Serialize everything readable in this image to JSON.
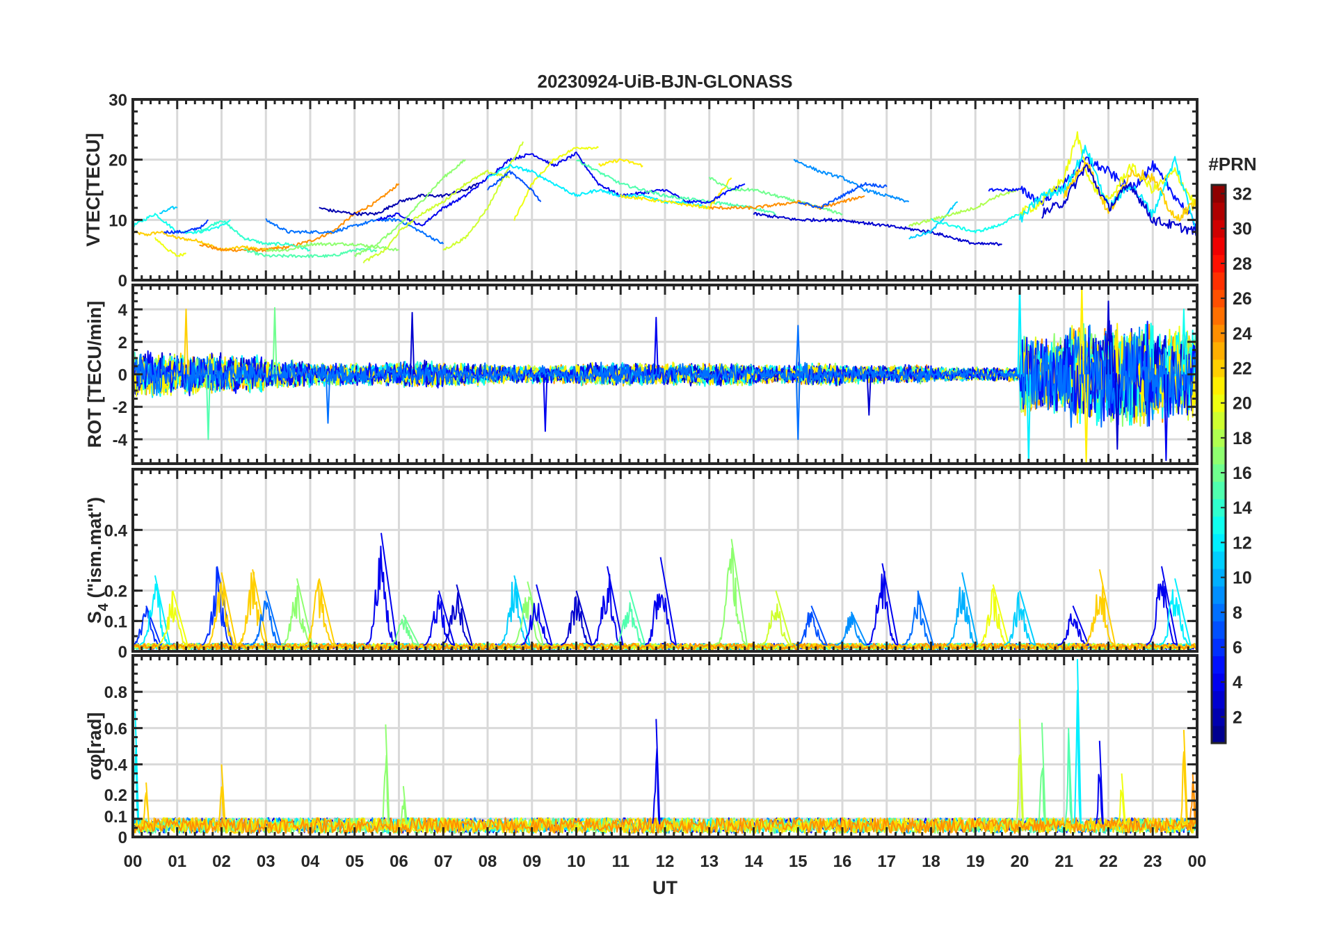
{
  "chart_data": {
    "type": "line",
    "title": "20230924-UiB-BJN-GLONASS",
    "xlabel": "UT",
    "xlim": [
      0,
      24
    ],
    "x_tick_labels": [
      "00",
      "01",
      "02",
      "03",
      "04",
      "05",
      "06",
      "07",
      "08",
      "09",
      "10",
      "11",
      "12",
      "13",
      "14",
      "15",
      "16",
      "17",
      "18",
      "19",
      "20",
      "21",
      "22",
      "23",
      "00"
    ],
    "grid": true,
    "colorbar": {
      "label": "#PRN",
      "range": [
        1,
        32
      ],
      "ticks": [
        2,
        4,
        6,
        8,
        10,
        12,
        14,
        16,
        18,
        20,
        22,
        24,
        26,
        28,
        30,
        32
      ],
      "colormap": "jet"
    },
    "panels": [
      {
        "id": "vtec",
        "ylabel": "VTEC[TECU]",
        "ylim": [
          0,
          30
        ],
        "yticks": [
          0,
          10,
          20,
          30
        ],
        "series": [
          {
            "prn": 22,
            "x": [
              0,
              0.3,
              0.6,
              1,
              1.5,
              2,
              2.5,
              3,
              3.3
            ],
            "y": [
              8,
              7.5,
              8,
              7,
              6.5,
              5,
              5.5,
              5,
              5.5
            ]
          },
          {
            "prn": 20,
            "x": [
              0.5,
              0.8,
              1,
              1.2
            ],
            "y": [
              7,
              5,
              4,
              4.5
            ]
          },
          {
            "prn": 24,
            "x": [
              1.5,
              2,
              2.5,
              3,
              3.5,
              4,
              4.5,
              5,
              5.5,
              6
            ],
            "y": [
              6,
              5,
              5,
              5,
              5.5,
              6.5,
              8,
              11,
              13,
              16
            ]
          },
          {
            "prn": 13,
            "x": [
              0,
              0.5,
              1,
              1.5,
              2,
              2.2
            ],
            "y": [
              9,
              11,
              8,
              8,
              9,
              10
            ]
          },
          {
            "prn": 11,
            "x": [
              0.6,
              0.9,
              1
            ],
            "y": [
              11,
              12,
              12
            ]
          },
          {
            "prn": 6,
            "x": [
              0.7,
              1.2,
              1.6,
              1.7
            ],
            "y": [
              8,
              8,
              9,
              10
            ]
          },
          {
            "prn": 14,
            "x": [
              1.5,
              2,
              2.5,
              3,
              3.5,
              4
            ],
            "y": [
              8,
              10,
              7,
              6,
              6,
              5
            ]
          },
          {
            "prn": 15,
            "x": [
              2.5,
              3,
              3.5,
              4,
              4.5,
              5,
              5.5
            ],
            "y": [
              5,
              4,
              4,
              4,
              4,
              5,
              5
            ]
          },
          {
            "prn": 17,
            "x": [
              3,
              3.5,
              4,
              4.5,
              5,
              5.5,
              6
            ],
            "y": [
              5,
              5,
              6,
              6,
              6,
              5.5,
              5
            ]
          },
          {
            "prn": 8,
            "x": [
              3,
              3.5,
              4,
              4.5,
              5,
              5.5,
              6,
              6.5,
              7
            ],
            "y": [
              10,
              8,
              8,
              8,
              9,
              10,
              10,
              8,
              6
            ]
          },
          {
            "prn": 2,
            "x": [
              4.2,
              4.5,
              5,
              5.5,
              6,
              6.5,
              7,
              7.5,
              7.8
            ],
            "y": [
              12,
              11.5,
              11,
              11,
              13,
              14,
              14,
              15,
              16
            ]
          },
          {
            "prn": 4,
            "x": [
              5.5,
              6,
              6.5,
              7,
              7.5,
              8,
              8.5,
              9,
              9.5,
              10,
              10.5,
              11,
              12,
              12.5
            ],
            "y": [
              10,
              11,
              9,
              12,
              14,
              17,
              20,
              21,
              19,
              21,
              16,
              14,
              15,
              13
            ]
          },
          {
            "prn": 17,
            "x": [
              5,
              5.5,
              6,
              6.5,
              7,
              7.5
            ],
            "y": [
              4,
              6,
              9,
              13,
              17,
              20
            ]
          },
          {
            "prn": 19,
            "x": [
              7,
              7.5,
              8,
              8.5,
              8.8
            ],
            "y": [
              5,
              7,
              12,
              19,
              23
            ]
          },
          {
            "prn": 19,
            "x": [
              5.2,
              5.7,
              6,
              6.5,
              7,
              7.5,
              8,
              8.5
            ],
            "y": [
              3,
              5,
              8,
              11,
              13,
              16,
              18,
              17
            ]
          },
          {
            "prn": 20,
            "x": [
              8.6,
              9,
              9.5,
              10,
              10.5
            ],
            "y": [
              10,
              16,
              20,
              22,
              22
            ]
          },
          {
            "prn": 21,
            "x": [
              10.5,
              11,
              11.5
            ],
            "y": [
              19,
              20,
              19
            ]
          },
          {
            "prn": 12,
            "x": [
              8,
              8.5,
              9,
              9.5,
              10,
              10.5,
              11,
              11.5,
              12,
              12.5,
              13
            ],
            "y": [
              17,
              19,
              18,
              16,
              14,
              15,
              14,
              14,
              13,
              13,
              12
            ]
          },
          {
            "prn": 7,
            "x": [
              8,
              8.5,
              9,
              9.2
            ],
            "y": [
              15,
              18,
              15,
              13
            ]
          },
          {
            "prn": 15,
            "x": [
              10,
              11,
              12,
              13,
              14,
              14.5
            ],
            "y": [
              20,
              16,
              14,
              13,
              12,
              11
            ]
          },
          {
            "prn": 21,
            "x": [
              11,
              12,
              13,
              13.5
            ],
            "y": [
              14,
              13,
              12,
              17
            ]
          },
          {
            "prn": 16,
            "x": [
              13,
              13.5,
              14,
              14.5,
              15,
              15.5,
              16
            ],
            "y": [
              17,
              15,
              15,
              14,
              13,
              12,
              11
            ]
          },
          {
            "prn": 5,
            "x": [
              12.5,
              13,
              13.5,
              13.8
            ],
            "y": [
              13,
              13,
              15,
              16
            ]
          },
          {
            "prn": 24,
            "x": [
              13,
              14,
              15,
              15.5,
              16,
              16.5
            ],
            "y": [
              12,
              12,
              13,
              12,
              13,
              14
            ]
          },
          {
            "prn": 9,
            "x": [
              14.9,
              15.5,
              16,
              16.5,
              17,
              17.5
            ],
            "y": [
              20,
              18,
              17,
              15,
              14,
              13
            ]
          },
          {
            "prn": 3,
            "x": [
              14,
              15,
              16,
              17,
              18,
              19,
              19.6
            ],
            "y": [
              11,
              10,
              10,
              9,
              8,
              6,
              6
            ]
          },
          {
            "prn": 7,
            "x": [
              15,
              15.5,
              16,
              16.5,
              17
            ],
            "y": [
              13,
              12,
              14,
              16,
              15.5
            ]
          },
          {
            "prn": 11,
            "x": [
              17.5,
              18,
              18.6
            ],
            "y": [
              7,
              8,
              13
            ]
          },
          {
            "prn": 18,
            "x": [
              17.5,
              18,
              18.5,
              19,
              19.5,
              20
            ],
            "y": [
              9,
              10,
              11,
              12,
              14,
              15
            ]
          },
          {
            "prn": 13,
            "x": [
              18,
              18.5,
              19,
              19.5,
              20
            ],
            "y": [
              10,
              9,
              8,
              9,
              11
            ]
          },
          {
            "prn": 5,
            "x": [
              19.3,
              20,
              20.5,
              21,
              21.5,
              22,
              22.5,
              23,
              23.5,
              24
            ],
            "y": [
              15,
              15,
              13,
              16,
              20,
              18,
              15,
              19,
              14,
              9
            ]
          },
          {
            "prn": 20,
            "x": [
              20,
              20.5,
              21,
              21.3,
              21.6,
              22,
              22.5,
              23,
              23.5,
              24
            ],
            "y": [
              11,
              13,
              17,
              24,
              16,
              13,
              19,
              15,
              18,
              12
            ]
          },
          {
            "prn": 12,
            "x": [
              20,
              20.5,
              21,
              21.5,
              22,
              22.5,
              23,
              23.5,
              24
            ],
            "y": [
              10,
              14,
              15,
              22,
              12,
              16,
              11,
              20,
              8
            ]
          },
          {
            "prn": 22,
            "x": [
              21,
              21.5,
              22,
              22.5,
              23,
              23.5,
              24
            ],
            "y": [
              14,
              20,
              11,
              18,
              17,
              10,
              13
            ]
          },
          {
            "prn": 3,
            "x": [
              20.5,
              21,
              21.5,
              22,
              22.5,
              23,
              23.5,
              24
            ],
            "y": [
              11,
              13,
              19,
              12,
              16,
              10,
              9,
              8
            ]
          }
        ]
      },
      {
        "id": "rot",
        "ylabel": "ROT [TECU/min]",
        "ylim": [
          -5.5,
          5.5
        ],
        "yticks": [
          -4,
          -2,
          0,
          2,
          4
        ],
        "noise_amplitude_by_hour": [
          1.0,
          0.9,
          0.8,
          0.6,
          0.5,
          0.5,
          0.6,
          0.5,
          0.4,
          0.4,
          0.5,
          0.5,
          0.5,
          0.5,
          0.4,
          0.5,
          0.4,
          0.4,
          0.3,
          0.3,
          1.8,
          2.3,
          2.3,
          2.0
        ],
        "prns": [
          22,
          24,
          14,
          19,
          4,
          9,
          12,
          17,
          20,
          3,
          13,
          21,
          5,
          8
        ],
        "spikes": [
          [
            1.2,
            4,
            22
          ],
          [
            1.7,
            -4,
            15
          ],
          [
            3.2,
            4.1,
            16
          ],
          [
            4.4,
            -3,
            8
          ],
          [
            6.3,
            3.8,
            3
          ],
          [
            9.3,
            -3.5,
            4
          ],
          [
            11.8,
            3.5,
            4
          ],
          [
            15,
            -4,
            8
          ],
          [
            15,
            3,
            8
          ],
          [
            16.6,
            -2.5,
            3
          ],
          [
            20,
            5.5,
            12
          ],
          [
            20.2,
            -5.5,
            12
          ],
          [
            21.4,
            5.5,
            21
          ],
          [
            21.5,
            -5.5,
            21
          ],
          [
            22,
            4.5,
            3
          ],
          [
            22.2,
            -4.6,
            3
          ],
          [
            23.3,
            -5.3,
            4
          ],
          [
            23.7,
            4,
            13
          ]
        ]
      },
      {
        "id": "s4",
        "ylabel": "S4 (\"ism.mat\")",
        "ylabel_main": "S",
        "ylabel_sub": "4",
        "ylabel_rest": " (\"ism.mat\")",
        "ylim": [
          0,
          0.6
        ],
        "yticks": [
          0,
          0.1,
          0.2,
          0.4
        ],
        "baseline": 0.02,
        "bursts": [
          [
            0.3,
            0.15,
            6
          ],
          [
            0.5,
            0.25,
            12
          ],
          [
            0.9,
            0.2,
            20
          ],
          [
            1.9,
            0.28,
            6
          ],
          [
            2.0,
            0.26,
            22
          ],
          [
            2.7,
            0.27,
            22
          ],
          [
            3.0,
            0.2,
            8
          ],
          [
            3.7,
            0.24,
            17
          ],
          [
            4.2,
            0.24,
            22
          ],
          [
            5.6,
            0.39,
            4
          ],
          [
            6.1,
            0.12,
            16
          ],
          [
            6.9,
            0.2,
            4
          ],
          [
            7.3,
            0.22,
            3
          ],
          [
            8.6,
            0.25,
            11
          ],
          [
            8.9,
            0.23,
            17
          ],
          [
            9.1,
            0.22,
            4
          ],
          [
            10.0,
            0.2,
            3
          ],
          [
            10.7,
            0.28,
            4
          ],
          [
            11.2,
            0.2,
            15
          ],
          [
            11.9,
            0.31,
            4
          ],
          [
            13.5,
            0.37,
            17
          ],
          [
            14.5,
            0.2,
            19
          ],
          [
            15.3,
            0.15,
            7
          ],
          [
            16.2,
            0.13,
            9
          ],
          [
            16.9,
            0.29,
            4
          ],
          [
            17.7,
            0.2,
            8
          ],
          [
            18.7,
            0.26,
            10
          ],
          [
            19.4,
            0.22,
            20
          ],
          [
            20.0,
            0.2,
            11
          ],
          [
            21.2,
            0.15,
            4
          ],
          [
            21.8,
            0.27,
            22
          ],
          [
            23.2,
            0.28,
            4
          ],
          [
            23.5,
            0.24,
            12
          ]
        ]
      },
      {
        "id": "sigma",
        "ylabel": "σφ[rad]",
        "ylabel_main": "σ",
        "ylabel_sub": "φ",
        "ylabel_rest": "[rad]",
        "ylim": [
          0,
          1
        ],
        "yticks": [
          0,
          0.1,
          0.2,
          0.4,
          0.6,
          0.8
        ],
        "baseline": 0.07,
        "spikes": [
          [
            0.05,
            0.7,
            12
          ],
          [
            0.3,
            0.3,
            22
          ],
          [
            2.0,
            0.4,
            22
          ],
          [
            5.7,
            0.62,
            17
          ],
          [
            6.1,
            0.28,
            17
          ],
          [
            11.8,
            0.65,
            4
          ],
          [
            20.0,
            0.65,
            19
          ],
          [
            20.5,
            0.63,
            16
          ],
          [
            21.1,
            0.6,
            15
          ],
          [
            21.3,
            0.98,
            12
          ],
          [
            21.8,
            0.53,
            4
          ],
          [
            22.3,
            0.35,
            20
          ],
          [
            23.7,
            0.59,
            22
          ],
          [
            23.9,
            0.35,
            24
          ]
        ]
      }
    ]
  }
}
